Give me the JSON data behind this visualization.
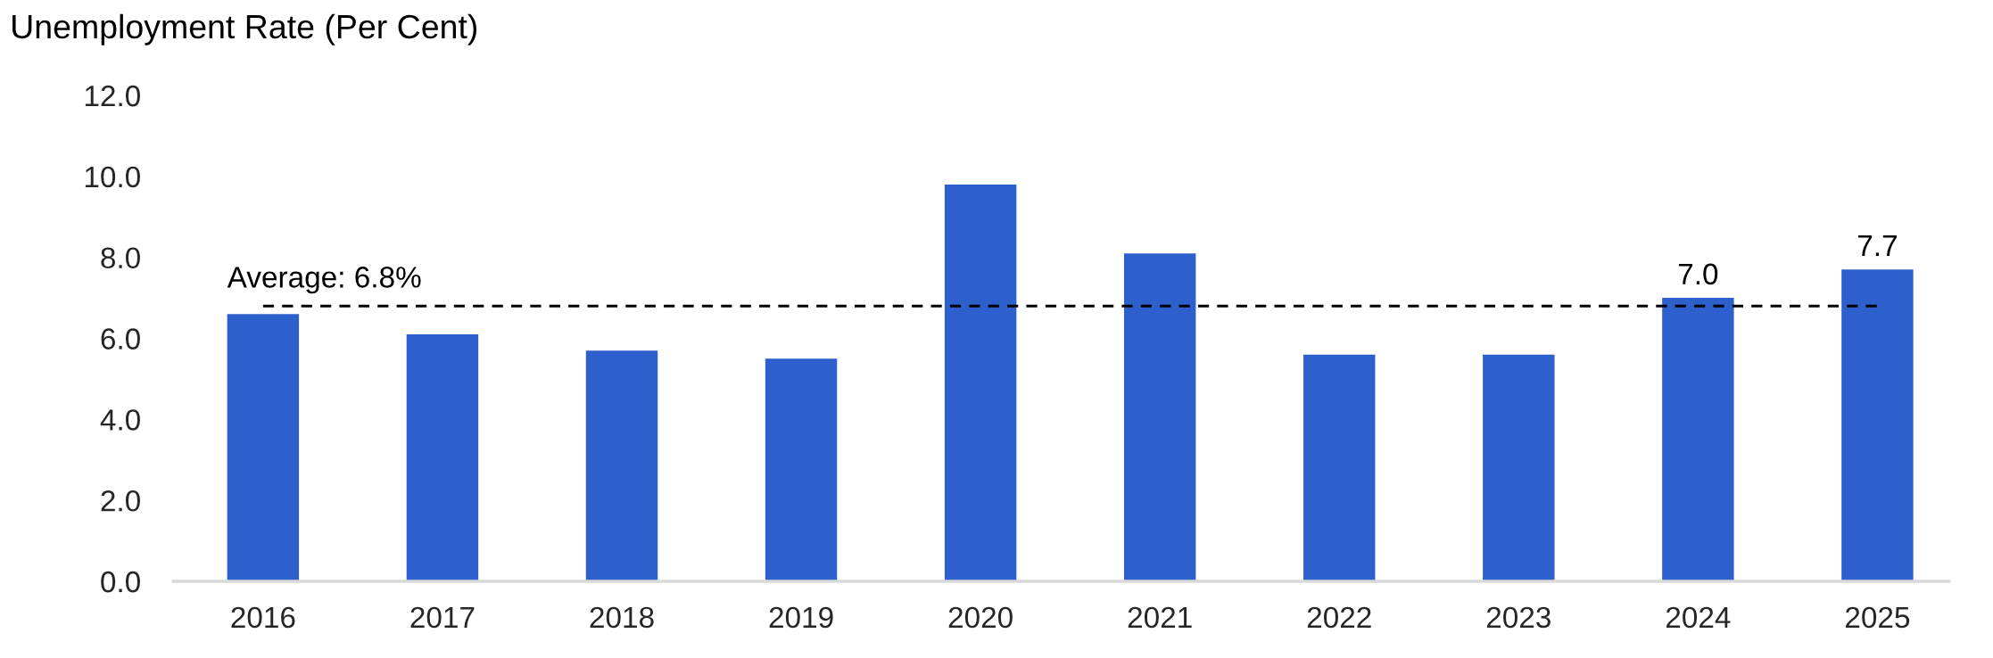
{
  "chart_data": {
    "type": "bar",
    "title": "Unemployment Rate (Per Cent)",
    "categories": [
      "2016",
      "2017",
      "2018",
      "2019",
      "2020",
      "2021",
      "2022",
      "2023",
      "2024",
      "2025"
    ],
    "values": [
      6.6,
      6.1,
      5.7,
      5.5,
      9.8,
      8.1,
      5.6,
      5.6,
      7.0,
      7.7
    ],
    "value_labels": [
      null,
      null,
      null,
      null,
      null,
      null,
      null,
      null,
      "7.0",
      "7.7"
    ],
    "color": "#2d60cd",
    "ylim": [
      0,
      12
    ],
    "yticks": [
      {
        "value": 0,
        "label": "0.0"
      },
      {
        "value": 2,
        "label": "2.0"
      },
      {
        "value": 4,
        "label": "4.0"
      },
      {
        "value": 6,
        "label": "6.0"
      },
      {
        "value": 8,
        "label": "8.0"
      },
      {
        "value": 10,
        "label": "10.0"
      },
      {
        "value": 12,
        "label": "12.0"
      }
    ],
    "ref_lines": [
      {
        "axis": "y",
        "value": 6.8,
        "label": "Average: 6.8%",
        "color": "#000000",
        "line_style": "dashed"
      }
    ],
    "grid": false,
    "legend": false
  }
}
